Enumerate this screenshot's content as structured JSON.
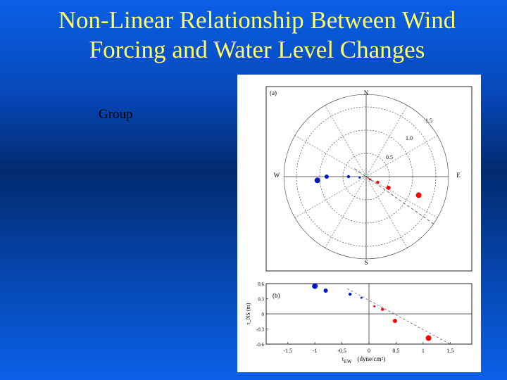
{
  "slide": {
    "title_line1": "Non-Linear Relationship Between Wind",
    "title_line2": "Forcing and  Water Level Changes",
    "bullet_text": "Group"
  },
  "chart_data": [
    {
      "type": "scatter",
      "coordinate_system": "polar",
      "panel_label": "(a)",
      "compass_labels": {
        "north": "N",
        "south": "S",
        "east": "E",
        "west": "W"
      },
      "ring_labels": [
        "0.5",
        "1.0",
        "1.5"
      ],
      "points": [
        {
          "x": -1.05,
          "y": -0.08,
          "color": "#0018c8",
          "size": "large"
        },
        {
          "x": -0.85,
          "y": 0.0,
          "color": "#0018c8",
          "size": "medium"
        },
        {
          "x": -0.38,
          "y": 0.0,
          "color": "#0018c8",
          "size": "small"
        },
        {
          "x": -0.14,
          "y": -0.02,
          "color": "#0018c8",
          "size": "tiny"
        },
        {
          "x": 0.08,
          "y": -0.06,
          "color": "#ff0000",
          "size": "tiny"
        },
        {
          "x": 0.25,
          "y": -0.12,
          "color": "#ff0000",
          "size": "small"
        },
        {
          "x": 0.48,
          "y": -0.24,
          "color": "#ff0000",
          "size": "medium"
        },
        {
          "x": 1.13,
          "y": -0.4,
          "color": "#ff0000",
          "size": "large"
        }
      ]
    },
    {
      "type": "scatter",
      "panel_label": "(b)",
      "xlabel_main": "τ",
      "xlabel_sub": "EW",
      "xlabel_units": "(dyne/cm²)",
      "ylabel": "τ_NS (m)",
      "xlim": [
        -1.9,
        1.9
      ],
      "ylim": [
        -0.6,
        0.6
      ],
      "xticks": [
        "-1.5",
        "-1",
        "-0.5",
        "0",
        "0.5",
        "1",
        "1.5"
      ],
      "yticks": [
        "0.6",
        "0.3",
        "0",
        "-0.3",
        "-0.6"
      ],
      "points": [
        {
          "x": -1.0,
          "y": 0.55,
          "color": "#0018c8",
          "size": "large"
        },
        {
          "x": -0.8,
          "y": 0.46,
          "color": "#0018c8",
          "size": "medium"
        },
        {
          "x": -0.35,
          "y": 0.39,
          "color": "#0018c8",
          "size": "small"
        },
        {
          "x": -0.14,
          "y": 0.32,
          "color": "#0018c8",
          "size": "tiny"
        },
        {
          "x": 0.1,
          "y": 0.15,
          "color": "#ff0000",
          "size": "tiny"
        },
        {
          "x": 0.25,
          "y": 0.09,
          "color": "#ff0000",
          "size": "small"
        },
        {
          "x": 0.48,
          "y": -0.14,
          "color": "#ff0000",
          "size": "medium"
        },
        {
          "x": 1.1,
          "y": -0.48,
          "color": "#ff0000",
          "size": "large"
        }
      ]
    }
  ]
}
